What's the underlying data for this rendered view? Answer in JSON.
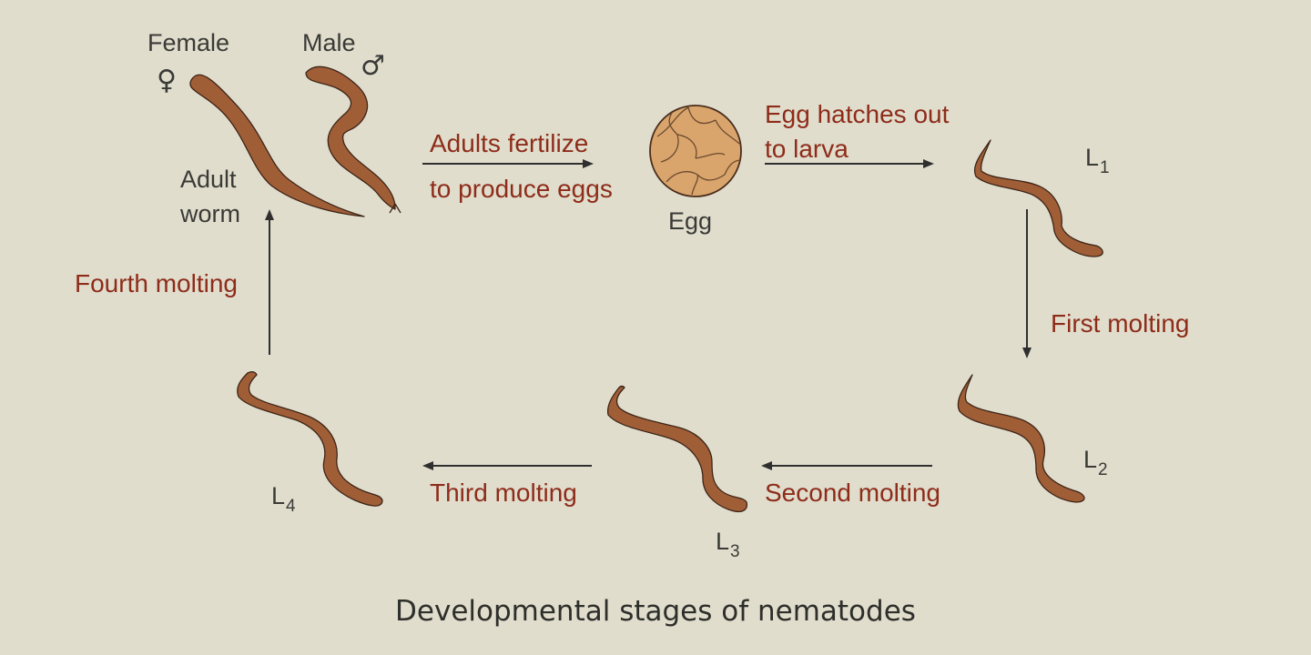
{
  "labels": {
    "female": "Female",
    "female_symbol": "♀",
    "male": "Male",
    "male_symbol": "♂",
    "adult_worm_line1": "Adult",
    "adult_worm_line2": "worm",
    "egg": "Egg",
    "l1": "L",
    "l1_sub": "1",
    "l2": "L",
    "l2_sub": "2",
    "l3": "L",
    "l3_sub": "3",
    "l4": "L",
    "l4_sub": "4"
  },
  "steps": {
    "fertilize_line1": "Adults fertilize",
    "fertilize_line2": "to produce eggs",
    "hatch_line1": "Egg hatches out",
    "hatch_line2": "to larva",
    "first_molting": "First molting",
    "second_molting": "Second molting",
    "third_molting": "Third molting",
    "fourth_molting": "Fourth molting"
  },
  "caption": "Developmental stages of nematodes",
  "colors": {
    "background": "#e0ddcd",
    "step_text": "#8e2c1a",
    "worm": "#a05e37",
    "egg": "#d9a56c"
  }
}
